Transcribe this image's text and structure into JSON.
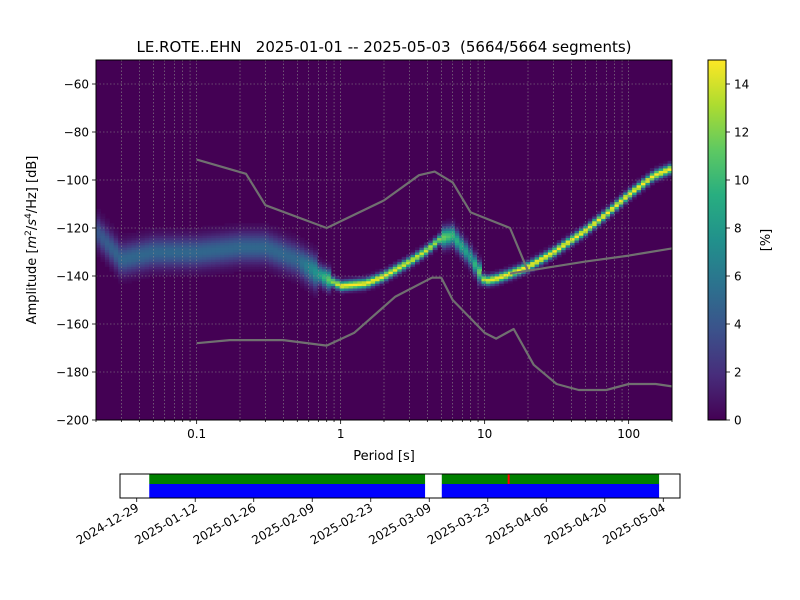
{
  "chart_data": [
    {
      "type": "heatmap",
      "title": "LE.ROTE..EHN   2025-01-01 -- 2025-05-03  (5664/5664 segments)",
      "xlabel": "Period [s]",
      "ylabel_parts": {
        "base": "Amplitude [",
        "m": "m",
        "m_exp": "2",
        "slash1": "/",
        "s": "s",
        "s_exp": "4",
        "tail": "/Hz] [dB]"
      },
      "x_scale": "log",
      "xlim": [
        0.02,
        200
      ],
      "ylim": [
        -200,
        -50
      ],
      "xticks": [
        0.1,
        1,
        10,
        100
      ],
      "xtick_labels": [
        "0.1",
        "1",
        "10",
        "100"
      ],
      "yticks": [
        -60,
        -80,
        -100,
        -120,
        -140,
        -160,
        -180,
        -200
      ],
      "ytick_labels": [
        "−60",
        "−80",
        "−100",
        "−120",
        "−140",
        "−160",
        "−180",
        "−200"
      ],
      "grid": true,
      "colorbar": {
        "label": "[%]",
        "range": [
          0,
          15
        ],
        "ticks": [
          0,
          2,
          4,
          6,
          8,
          10,
          12,
          14
        ],
        "tick_labels": [
          "0",
          "2",
          "4",
          "6",
          "8",
          "10",
          "12",
          "14"
        ],
        "colormap": "viridis"
      },
      "density_ridge": {
        "period": [
          0.02,
          0.03,
          0.05,
          0.1,
          0.2,
          0.3,
          0.5,
          0.7,
          1.0,
          1.5,
          2.0,
          3.0,
          4.0,
          5.0,
          6.0,
          8.0,
          10.0,
          12.0,
          15.0,
          20.0,
          30.0,
          50.0,
          70.0,
          100.0,
          150.0,
          200.0
        ],
        "amplitude_db": [
          -121,
          -133,
          -130,
          -130,
          -128,
          -128,
          -133,
          -139,
          -144,
          -143,
          -140,
          -134,
          -129,
          -124,
          -123,
          -132,
          -142,
          -141,
          -139,
          -136,
          -130,
          -121,
          -114,
          -106,
          -98,
          -95
        ],
        "peak_percent": [
          4,
          5,
          5,
          5,
          5,
          5,
          5,
          8,
          15,
          15,
          15,
          14,
          14,
          12,
          10,
          8,
          14,
          15,
          15,
          15,
          15,
          15,
          15,
          15,
          15,
          15
        ]
      },
      "series": [
        {
          "period": [
            0.1,
            0.22,
            0.3,
            0.8,
            2.0,
            3.5,
            4.5,
            6.0,
            8.0,
            15.0,
            20.0
          ],
          "amplitude_db": [
            -91.5,
            -97.4,
            -110.5,
            -120.0,
            -108.5,
            -98.0,
            -96.5,
            -101.0,
            -113.5,
            -120.0,
            -138.0
          ]
        },
        {
          "period": [
            0.1,
            0.17,
            0.4,
            0.8,
            1.24,
            2.4,
            4.3,
            5.0,
            6.0,
            10.0,
            12.0,
            15.9,
            21.9,
            31.6,
            45.0,
            70.0,
            100.0,
            154.0,
            200.0
          ],
          "amplitude_db": [
            -168.0,
            -166.7,
            -166.7,
            -169.0,
            -163.7,
            -148.6,
            -140.7,
            -140.7,
            -150.0,
            -163.7,
            -166.1,
            -162.1,
            -177.0,
            -185.0,
            -187.5,
            -187.5,
            -185.0,
            -185.0,
            -186.0
          ]
        },
        {
          "period": [
            15.0,
            50.0,
            100.0,
            200.0
          ],
          "amplitude_db": [
            -139.0,
            -134.0,
            -131.5,
            -128.5
          ]
        }
      ]
    },
    {
      "type": "bar",
      "x_type": "date",
      "xlim": [
        "2024-12-25",
        "2025-05-08"
      ],
      "xtick_labels": [
        "2024-12-29",
        "2025-01-12",
        "2025-01-26",
        "2025-02-09",
        "2025-02-23",
        "2025-03-09",
        "2025-03-23",
        "2025-04-06",
        "2025-04-20",
        "2025-05-04"
      ],
      "xtick_dates": [
        "2024-12-29",
        "2025-01-12",
        "2025-01-26",
        "2025-02-09",
        "2025-02-23",
        "2025-03-09",
        "2025-03-23",
        "2025-04-06",
        "2025-04-20",
        "2025-05-04"
      ],
      "data_coverage": [
        {
          "start": "2025-01-01",
          "end": "2025-03-08"
        },
        {
          "start": "2025-03-12",
          "end": "2025-05-03"
        }
      ],
      "segment_coverage": [
        {
          "start": "2025-01-01",
          "end": "2025-03-08"
        },
        {
          "start": "2025-03-12",
          "end": "2025-05-03"
        }
      ],
      "gaps": [
        "2025-03-28"
      ],
      "colors": {
        "data": "#0000ff",
        "segments": "#008000",
        "gap": "#ff0000"
      }
    }
  ]
}
